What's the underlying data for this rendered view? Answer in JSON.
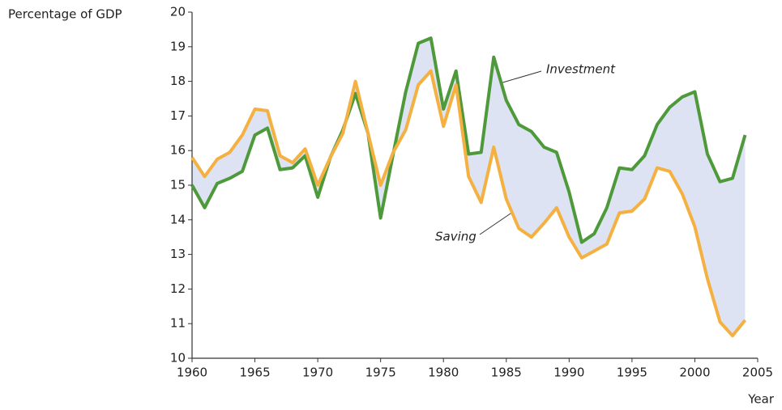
{
  "chart_data": {
    "type": "line",
    "y_label": "Percentage of GDP",
    "x_label": "Year",
    "annotations": [
      "Investment",
      "Saving"
    ],
    "x": [
      1960,
      1961,
      1962,
      1963,
      1964,
      1965,
      1966,
      1967,
      1968,
      1969,
      1970,
      1971,
      1972,
      1973,
      1974,
      1975,
      1976,
      1977,
      1978,
      1979,
      1980,
      1981,
      1982,
      1983,
      1984,
      1985,
      1986,
      1987,
      1988,
      1989,
      1990,
      1991,
      1992,
      1993,
      1994,
      1995,
      1996,
      1997,
      1998,
      1999,
      2000,
      2001,
      2002,
      2003,
      2004
    ],
    "series": [
      {
        "name": "Investment",
        "color": "#4e9a3a",
        "values": [
          15.0,
          14.35,
          15.05,
          15.2,
          15.4,
          16.45,
          16.65,
          15.45,
          15.5,
          15.85,
          14.65,
          15.8,
          16.6,
          17.65,
          16.5,
          14.05,
          15.9,
          17.7,
          19.1,
          19.25,
          17.2,
          18.3,
          15.9,
          15.95,
          18.7,
          17.45,
          16.75,
          16.55,
          16.1,
          15.95,
          14.8,
          13.35,
          13.6,
          14.35,
          15.5,
          15.45,
          15.85,
          16.75,
          17.25,
          17.55,
          17.7,
          15.9,
          15.1,
          15.2,
          16.45
        ]
      },
      {
        "name": "Saving",
        "color": "#f4b142",
        "values": [
          15.8,
          15.25,
          15.75,
          15.95,
          16.45,
          17.2,
          17.15,
          15.85,
          15.65,
          16.05,
          15.0,
          15.8,
          16.5,
          18.0,
          16.5,
          15.0,
          15.95,
          16.6,
          17.9,
          18.3,
          16.7,
          17.9,
          15.25,
          14.5,
          16.1,
          14.6,
          13.75,
          13.5,
          13.9,
          14.35,
          13.5,
          12.9,
          13.1,
          13.3,
          14.2,
          14.25,
          14.6,
          15.5,
          15.4,
          14.75,
          13.8,
          12.3,
          11.05,
          10.65,
          11.1
        ]
      }
    ],
    "fill_color": "#dde3f3",
    "xlim": [
      1960,
      2005
    ],
    "xticks": [
      1960,
      1965,
      1970,
      1975,
      1980,
      1985,
      1990,
      1995,
      2000,
      2005
    ],
    "ylim": [
      10,
      20
    ],
    "yticks": [
      10,
      11,
      12,
      13,
      14,
      15,
      16,
      17,
      18,
      19,
      20
    ]
  }
}
